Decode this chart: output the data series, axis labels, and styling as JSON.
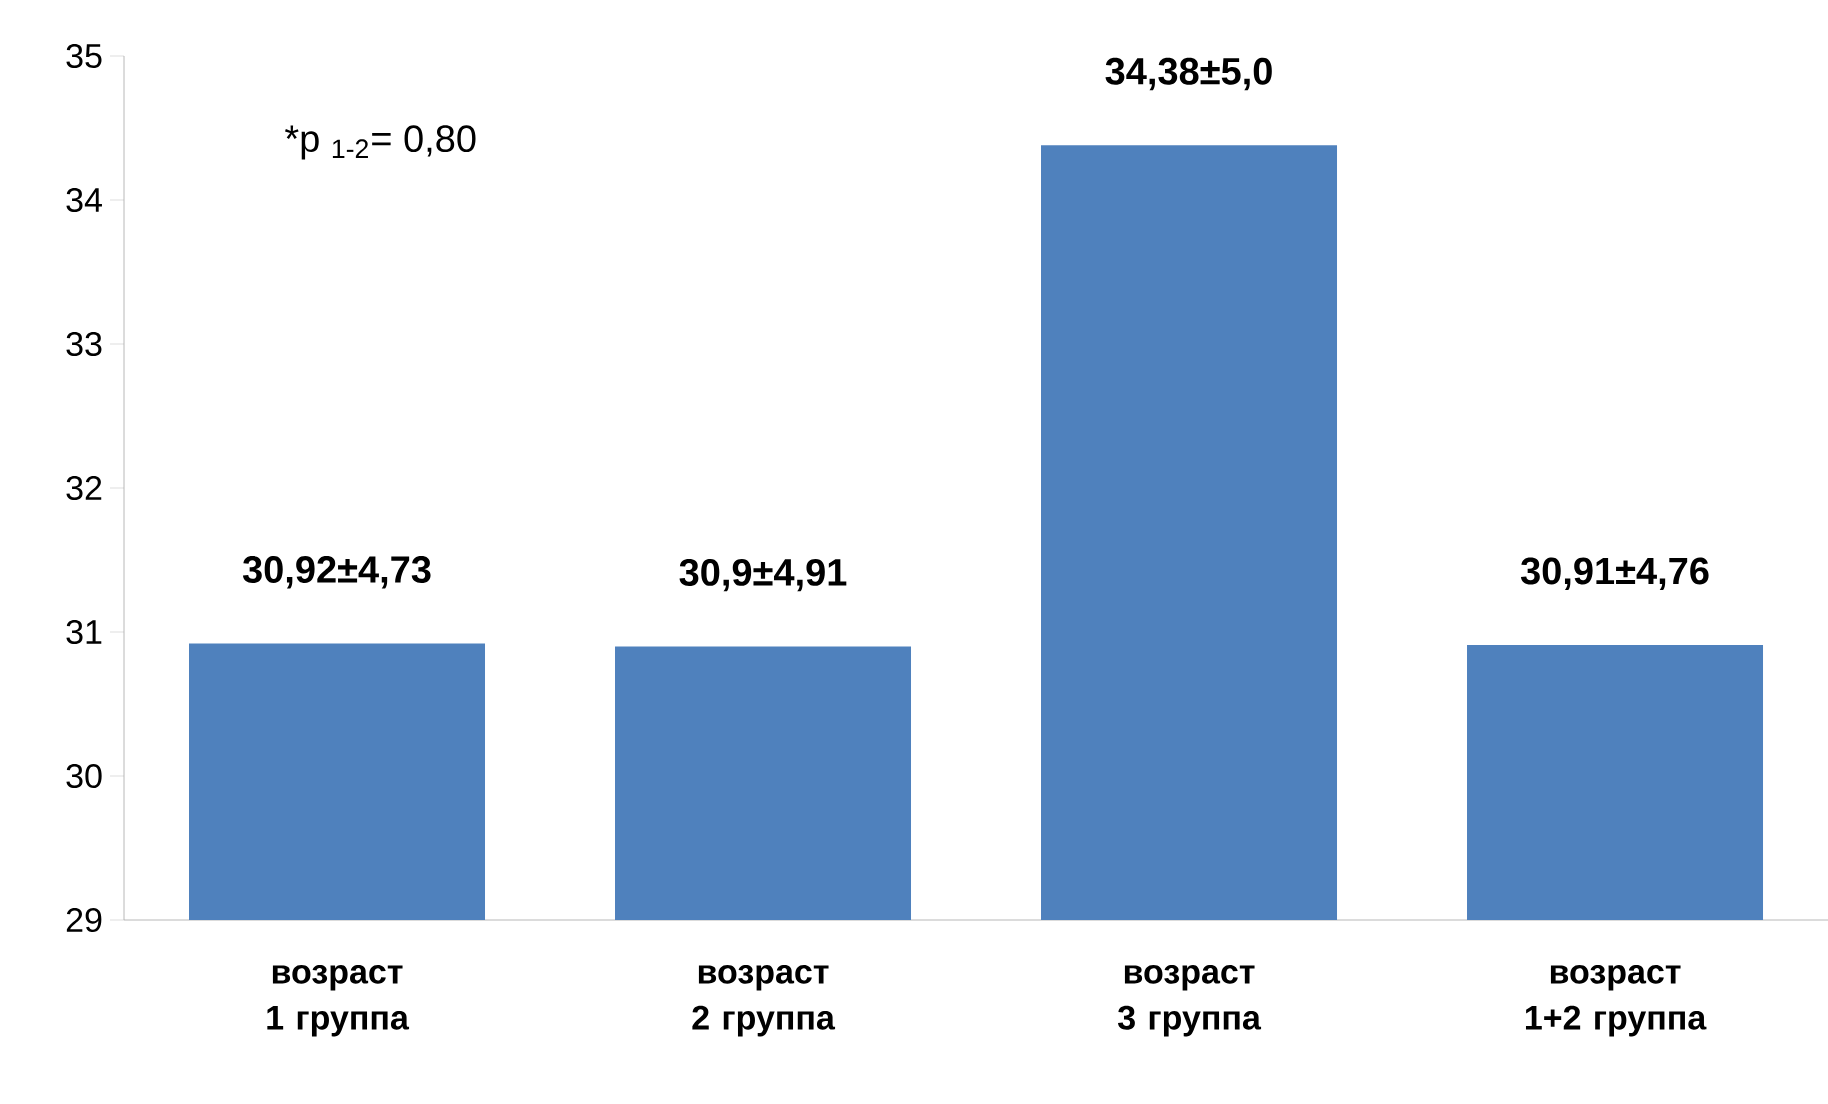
{
  "chart_data": {
    "type": "bar",
    "categories": [
      "возраст 1 группа",
      "возраст 2 группа",
      "возраст 3 группа",
      "возраст 1+2 группа"
    ],
    "values": [
      30.92,
      30.9,
      34.38,
      30.91
    ],
    "value_labels": [
      "30,92±4,73",
      "30,9±4,91",
      "34,38±5,0",
      "30,91±4,76"
    ],
    "color": "#4f81bd",
    "ylim": [
      29,
      35
    ],
    "yticks": [
      29,
      30,
      31,
      32,
      33,
      34,
      35
    ],
    "grid": false,
    "annotations": [
      "*p $_{1-2}$= 0,80"
    ]
  }
}
